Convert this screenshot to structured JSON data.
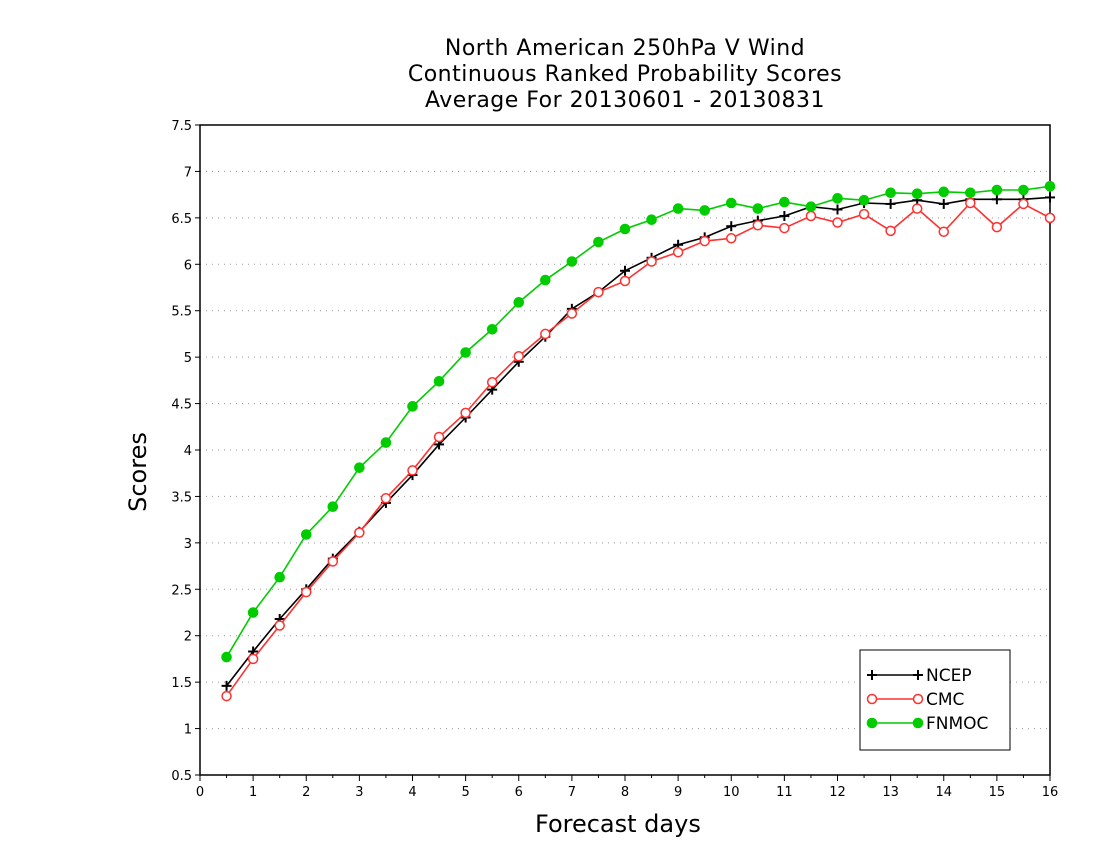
{
  "chart_data": {
    "type": "line",
    "title": [
      "North American 250hPa V Wind",
      "Continuous Ranked Probability Scores",
      "Average For 20130601 - 20130831"
    ],
    "xlabel": "Forecast days",
    "ylabel": "Scores",
    "xlim": [
      0,
      16
    ],
    "ylim": [
      0.5,
      7.5
    ],
    "xticks": [
      "0",
      "1",
      "2",
      "3",
      "4",
      "5",
      "6",
      "7",
      "8",
      "9",
      "10",
      "11",
      "12",
      "13",
      "14",
      "15",
      "16"
    ],
    "yticks": [
      "0.5",
      "1",
      "1.5",
      "2",
      "2.5",
      "3",
      "3.5",
      "4",
      "4.5",
      "5",
      "5.5",
      "6",
      "6.5",
      "7",
      "7.5"
    ],
    "grid": "horizontal-dotted",
    "legend_position": "bottom-right",
    "x": [
      0.5,
      1,
      1.5,
      2,
      2.5,
      3,
      3.5,
      4,
      4.5,
      5,
      5.5,
      6,
      6.5,
      7,
      7.5,
      8,
      8.5,
      9,
      9.5,
      10,
      10.5,
      11,
      11.5,
      12,
      12.5,
      13,
      13.5,
      14,
      14.5,
      15,
      15.5,
      16
    ],
    "series": [
      {
        "name": "NCEP",
        "color": "#000000",
        "marker": "plus",
        "values": [
          1.46,
          1.83,
          2.18,
          2.5,
          2.83,
          3.12,
          3.43,
          3.73,
          4.06,
          4.35,
          4.65,
          4.95,
          5.22,
          5.52,
          5.7,
          5.93,
          6.07,
          6.21,
          6.29,
          6.41,
          6.47,
          6.52,
          6.62,
          6.59,
          6.66,
          6.65,
          6.69,
          6.65,
          6.7,
          6.7,
          6.7,
          6.72
        ]
      },
      {
        "name": "CMC",
        "color": "#ff3030",
        "marker": "open-circle",
        "values": [
          1.35,
          1.75,
          2.11,
          2.47,
          2.8,
          3.11,
          3.48,
          3.78,
          4.14,
          4.4,
          4.73,
          5.01,
          5.25,
          5.47,
          5.7,
          5.82,
          6.03,
          6.13,
          6.25,
          6.28,
          6.42,
          6.39,
          6.52,
          6.45,
          6.54,
          6.36,
          6.6,
          6.35,
          6.66,
          6.4,
          6.65,
          6.5
        ]
      },
      {
        "name": "FNMOC",
        "color": "#00cc00",
        "marker": "filled-circle",
        "values": [
          1.77,
          2.25,
          2.63,
          3.09,
          3.39,
          3.81,
          4.08,
          4.47,
          4.74,
          5.05,
          5.3,
          5.59,
          5.83,
          6.03,
          6.24,
          6.38,
          6.48,
          6.6,
          6.58,
          6.66,
          6.6,
          6.67,
          6.62,
          6.71,
          6.69,
          6.77,
          6.76,
          6.78,
          6.77,
          6.8,
          6.8,
          6.84
        ]
      }
    ]
  }
}
